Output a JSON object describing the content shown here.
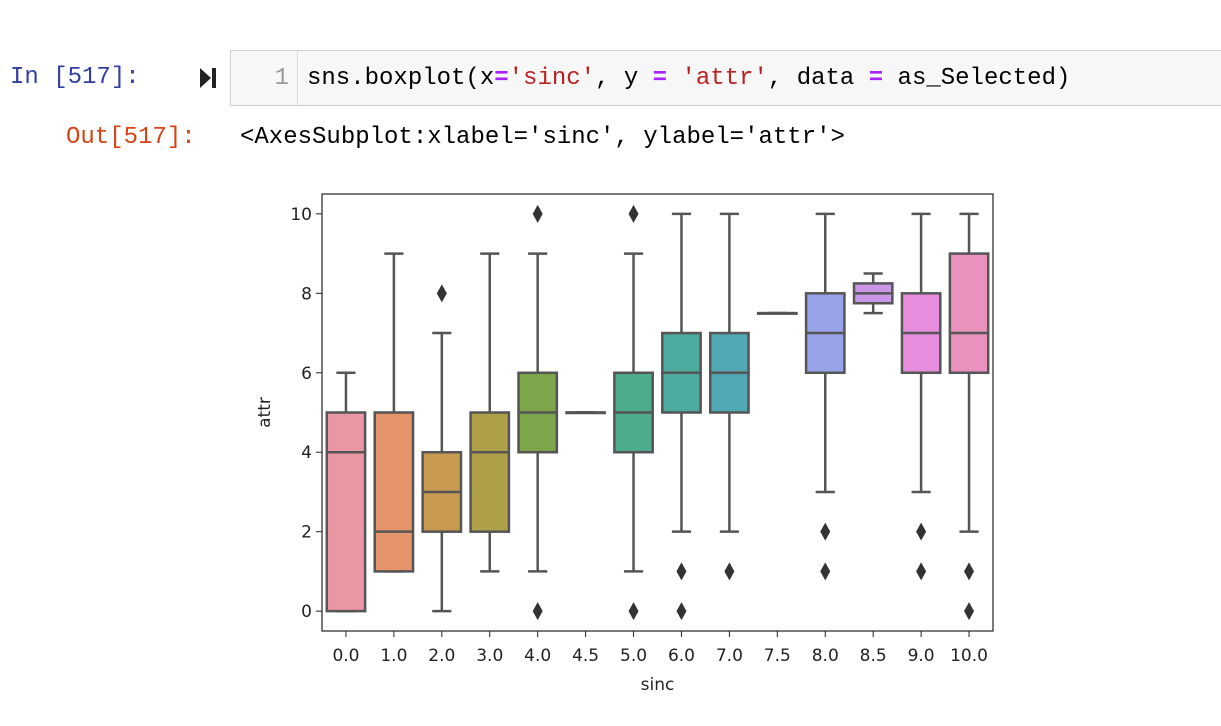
{
  "cell": {
    "in_prompt": "In [517]:",
    "line_number": "1",
    "code": {
      "p1": "sns.boxplot(x",
      "eq": "=",
      "s1": "'sinc'",
      "p2": ", y ",
      "p3": " ",
      "s2": "'attr'",
      "p4": ", data ",
      "p5": " as_Selected)"
    },
    "out_prompt": "Out[517]:",
    "output_text": "<AxesSubplot:xlabel='sinc', ylabel='attr'>"
  },
  "chart_data": {
    "type": "box",
    "xlabel": "sinc",
    "ylabel": "attr",
    "ylim": [
      -0.5,
      10.5
    ],
    "yticks": [
      0,
      2,
      4,
      6,
      8,
      10
    ],
    "categories": [
      "0.0",
      "1.0",
      "2.0",
      "3.0",
      "4.0",
      "4.5",
      "5.0",
      "6.0",
      "7.0",
      "7.5",
      "8.0",
      "8.5",
      "9.0",
      "10.0"
    ],
    "colors": [
      "#ea96a3",
      "#e59368",
      "#c89a4f",
      "#ada049",
      "#7da54a",
      "#4fae6a",
      "#4dac8c",
      "#4caa9f",
      "#4fa8b4",
      "#5aa2d0",
      "#98a3e8",
      "#c996e8",
      "#e68ddd",
      "#ea92bd"
    ],
    "boxes": [
      {
        "whislo": 0,
        "q1": 0,
        "med": 4,
        "q3": 5,
        "whishi": 6,
        "fliers": []
      },
      {
        "whislo": 1,
        "q1": 1,
        "med": 2,
        "q3": 5,
        "whishi": 9,
        "fliers": []
      },
      {
        "whislo": 0,
        "q1": 2,
        "med": 3,
        "q3": 4,
        "whishi": 7,
        "fliers": [
          8
        ]
      },
      {
        "whislo": 1,
        "q1": 2,
        "med": 4,
        "q3": 5,
        "whishi": 9,
        "fliers": []
      },
      {
        "whislo": 1,
        "q1": 4,
        "med": 5,
        "q3": 6,
        "whishi": 9,
        "fliers": [
          0,
          10
        ]
      },
      {
        "whislo": 5,
        "q1": 5,
        "med": 5,
        "q3": 5,
        "whishi": 5,
        "fliers": []
      },
      {
        "whislo": 1,
        "q1": 4,
        "med": 5,
        "q3": 6,
        "whishi": 9,
        "fliers": [
          0,
          10
        ]
      },
      {
        "whislo": 2,
        "q1": 5,
        "med": 6,
        "q3": 7,
        "whishi": 10,
        "fliers": [
          0,
          1
        ]
      },
      {
        "whislo": 2,
        "q1": 5,
        "med": 6,
        "q3": 7,
        "whishi": 10,
        "fliers": [
          1
        ]
      },
      {
        "whislo": 7.5,
        "q1": 7.5,
        "med": 7.5,
        "q3": 7.5,
        "whishi": 7.5,
        "fliers": []
      },
      {
        "whislo": 3,
        "q1": 6,
        "med": 7,
        "q3": 8,
        "whishi": 10,
        "fliers": [
          1,
          2
        ]
      },
      {
        "whislo": 7.5,
        "q1": 7.75,
        "med": 8,
        "q3": 8.25,
        "whishi": 8.5,
        "fliers": []
      },
      {
        "whislo": 3,
        "q1": 6,
        "med": 7,
        "q3": 8,
        "whishi": 10,
        "fliers": [
          1,
          2
        ]
      },
      {
        "whislo": 2,
        "q1": 6,
        "med": 7,
        "q3": 9,
        "whishi": 10,
        "fliers": [
          0,
          1
        ]
      }
    ]
  }
}
